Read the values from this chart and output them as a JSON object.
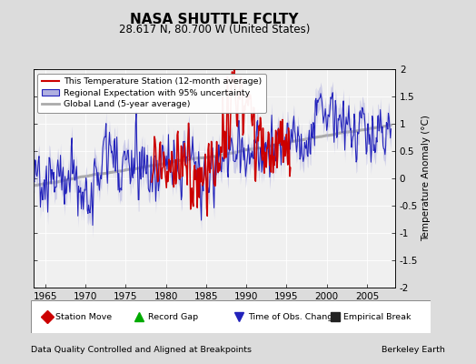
{
  "title": "NASA SHUTTLE FCLTY",
  "subtitle": "28.617 N, 80.700 W (United States)",
  "ylabel": "Temperature Anomaly (°C)",
  "xlabel_note": "Data Quality Controlled and Aligned at Breakpoints",
  "credit": "Berkeley Earth",
  "ylim": [
    -2,
    2
  ],
  "xlim": [
    1963.5,
    2008.5
  ],
  "xticks": [
    1965,
    1970,
    1975,
    1980,
    1985,
    1990,
    1995,
    2000,
    2005
  ],
  "yticks": [
    -2,
    -1.5,
    -1,
    -0.5,
    0,
    0.5,
    1,
    1.5,
    2
  ],
  "bg_color": "#dcdcdc",
  "plot_bg_color": "#f0f0f0",
  "red_color": "#cc0000",
  "blue_color": "#2222bb",
  "blue_fill_color": "#b0b0e0",
  "gray_color": "#aaaaaa",
  "legend_station": "This Temperature Station (12-month average)",
  "legend_regional": "Regional Expectation with 95% uncertainty",
  "legend_global": "Global Land (5-year average)",
  "marker_labels": [
    "Station Move",
    "Record Gap",
    "Time of Obs. Change",
    "Empirical Break"
  ],
  "marker_colors": [
    "#cc0000",
    "#00aa00",
    "#2222bb",
    "#222222"
  ],
  "marker_styles": [
    "D",
    "^",
    "v",
    "s"
  ]
}
